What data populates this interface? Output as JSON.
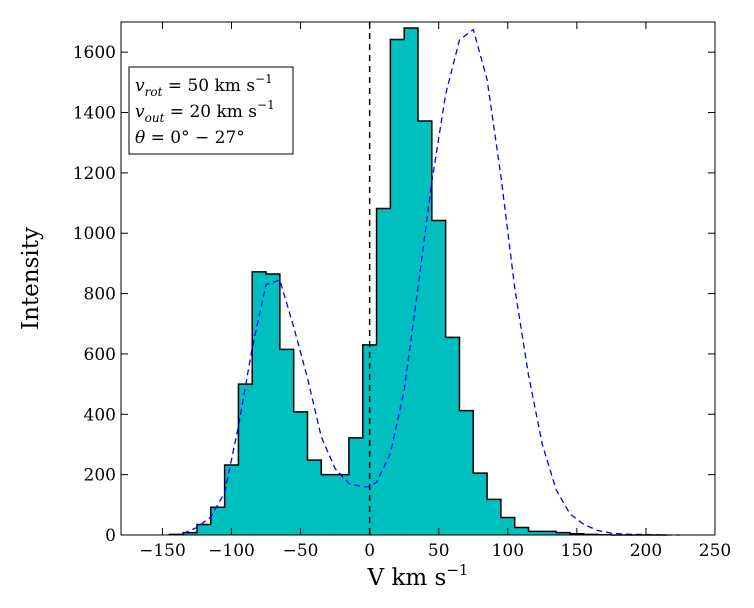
{
  "chart_data": {
    "type": "bar",
    "subtype": "histogram-step-filled",
    "xlabel": "V km s",
    "xlabel_sup": "−1",
    "ylabel": "Intensity",
    "xlim": [
      -180,
      250
    ],
    "ylim": [
      0,
      1700
    ],
    "xticks": [
      {
        "value": -150,
        "label": "−150"
      },
      {
        "value": -100,
        "label": "−100"
      },
      {
        "value": -50,
        "label": "−50"
      },
      {
        "value": 0,
        "label": "0"
      },
      {
        "value": 50,
        "label": "50"
      },
      {
        "value": 100,
        "label": "100"
      },
      {
        "value": 150,
        "label": "150"
      },
      {
        "value": 200,
        "label": "200"
      },
      {
        "value": 250,
        "label": "250"
      }
    ],
    "yticks": [
      {
        "value": 0,
        "label": "0"
      },
      {
        "value": 200,
        "label": "200"
      },
      {
        "value": 400,
        "label": "400"
      },
      {
        "value": 600,
        "label": "600"
      },
      {
        "value": 800,
        "label": "800"
      },
      {
        "value": 1000,
        "label": "1000"
      },
      {
        "value": 1200,
        "label": "1200"
      },
      {
        "value": 1400,
        "label": "1400"
      },
      {
        "value": 1600,
        "label": "1600"
      }
    ],
    "bin_edges": [
      -145,
      -135,
      -125,
      -115,
      -105,
      -95,
      -85,
      -75,
      -65,
      -55,
      -45,
      -35,
      -25,
      -15,
      -5,
      5,
      15,
      25,
      35,
      45,
      55,
      65,
      75,
      85,
      95,
      105,
      115,
      125,
      135,
      145,
      155,
      165,
      175,
      185,
      195,
      205,
      215
    ],
    "counts": [
      2,
      8,
      35,
      92,
      232,
      500,
      872,
      865,
      615,
      408,
      248,
      200,
      200,
      322,
      630,
      1082,
      1642,
      1680,
      1372,
      1042,
      655,
      412,
      205,
      118,
      58,
      25,
      12,
      12,
      8,
      4,
      2,
      1,
      0,
      0,
      0,
      0
    ],
    "model_curve": {
      "x": [
        -135,
        -125,
        -115,
        -105,
        -95,
        -85,
        -75,
        -65,
        -55,
        -45,
        -35,
        -25,
        -15,
        -5,
        0,
        5,
        15,
        25,
        35,
        45,
        55,
        65,
        75,
        85,
        95,
        105,
        115,
        125,
        135,
        145,
        155,
        165,
        175,
        185,
        195,
        205,
        215,
        225
      ],
      "y": [
        5,
        25,
        60,
        140,
        360,
        620,
        830,
        845,
        690,
        520,
        325,
        220,
        170,
        160,
        160,
        175,
        270,
        480,
        820,
        1170,
        1460,
        1640,
        1675,
        1510,
        1190,
        820,
        530,
        300,
        150,
        70,
        35,
        15,
        6,
        3,
        2,
        1,
        0,
        0
      ]
    },
    "reference_line_x": 0,
    "colors": {
      "fill": "#00bfbf",
      "edge": "#000000",
      "curve": "#0000ff",
      "reference": "#000000"
    },
    "legend": {
      "placement": "top-left",
      "lines": [
        {
          "var": "v",
          "sub": "rot",
          "rest": " = 50 km s",
          "sup": "−1"
        },
        {
          "var": "v",
          "sub": "out",
          "rest": " = 20 km s",
          "sup": "−1"
        },
        {
          "var": "θ",
          "sub": "",
          "rest": " = 0° − 27°",
          "sup": ""
        }
      ]
    }
  }
}
